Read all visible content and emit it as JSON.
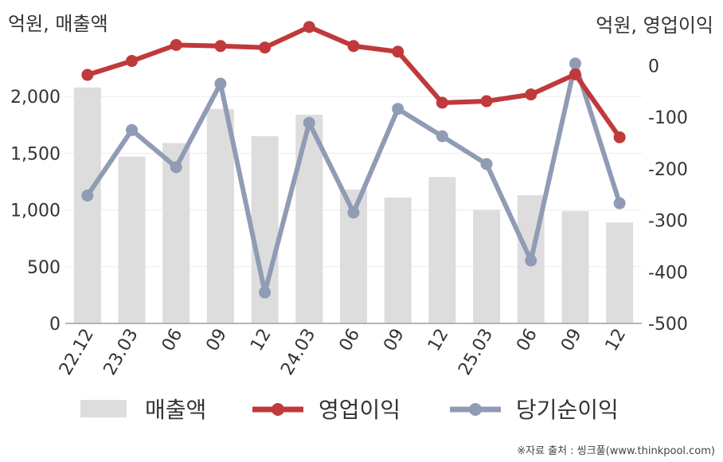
{
  "chart_data": {
    "type": "bar+line",
    "left_axis_label": "억원, 매출액",
    "right_axis_label": "억원, 영업이익",
    "categories": [
      "22.12",
      "23.03",
      "06",
      "09",
      "12",
      "24.03",
      "06",
      "09",
      "12",
      "25.03",
      "06",
      "09",
      "12"
    ],
    "left_axis": {
      "ylim": [
        0,
        2500
      ],
      "ticks": [
        0,
        500,
        1000,
        1500,
        2000
      ],
      "tick_labels": [
        "0",
        "500",
        "1,000",
        "1,500",
        "2,000"
      ]
    },
    "right_axis": {
      "ylim": [
        -500,
        50
      ],
      "ticks": [
        -500,
        -400,
        -300,
        -200,
        -100,
        0
      ],
      "tick_labels": [
        "-500",
        "-400",
        "-300",
        "-200",
        "-100",
        "0"
      ]
    },
    "series": [
      {
        "name": "매출액",
        "type": "bar",
        "axis": "left",
        "color": "#dddddd",
        "values": [
          2080,
          1470,
          1590,
          1890,
          1650,
          1840,
          1180,
          1110,
          1290,
          1000,
          1130,
          990,
          890
        ]
      },
      {
        "name": "영업이익",
        "type": "line",
        "axis": "right",
        "color": "#c0393b",
        "values": [
          -18,
          9,
          40,
          38,
          35,
          75,
          38,
          27,
          -72,
          -69,
          -56,
          -17,
          -139
        ]
      },
      {
        "name": "당기순이익",
        "type": "line",
        "axis": "right",
        "color": "#909bb5",
        "values": [
          -252,
          -125,
          -197,
          -35,
          -440,
          -111,
          -285,
          -84,
          -137,
          -191,
          -378,
          4,
          -267
        ]
      }
    ],
    "legend_position": "bottom",
    "grid": true
  },
  "source_note": "※자료 출처 : 씽크풀(www.thinkpool.com)"
}
